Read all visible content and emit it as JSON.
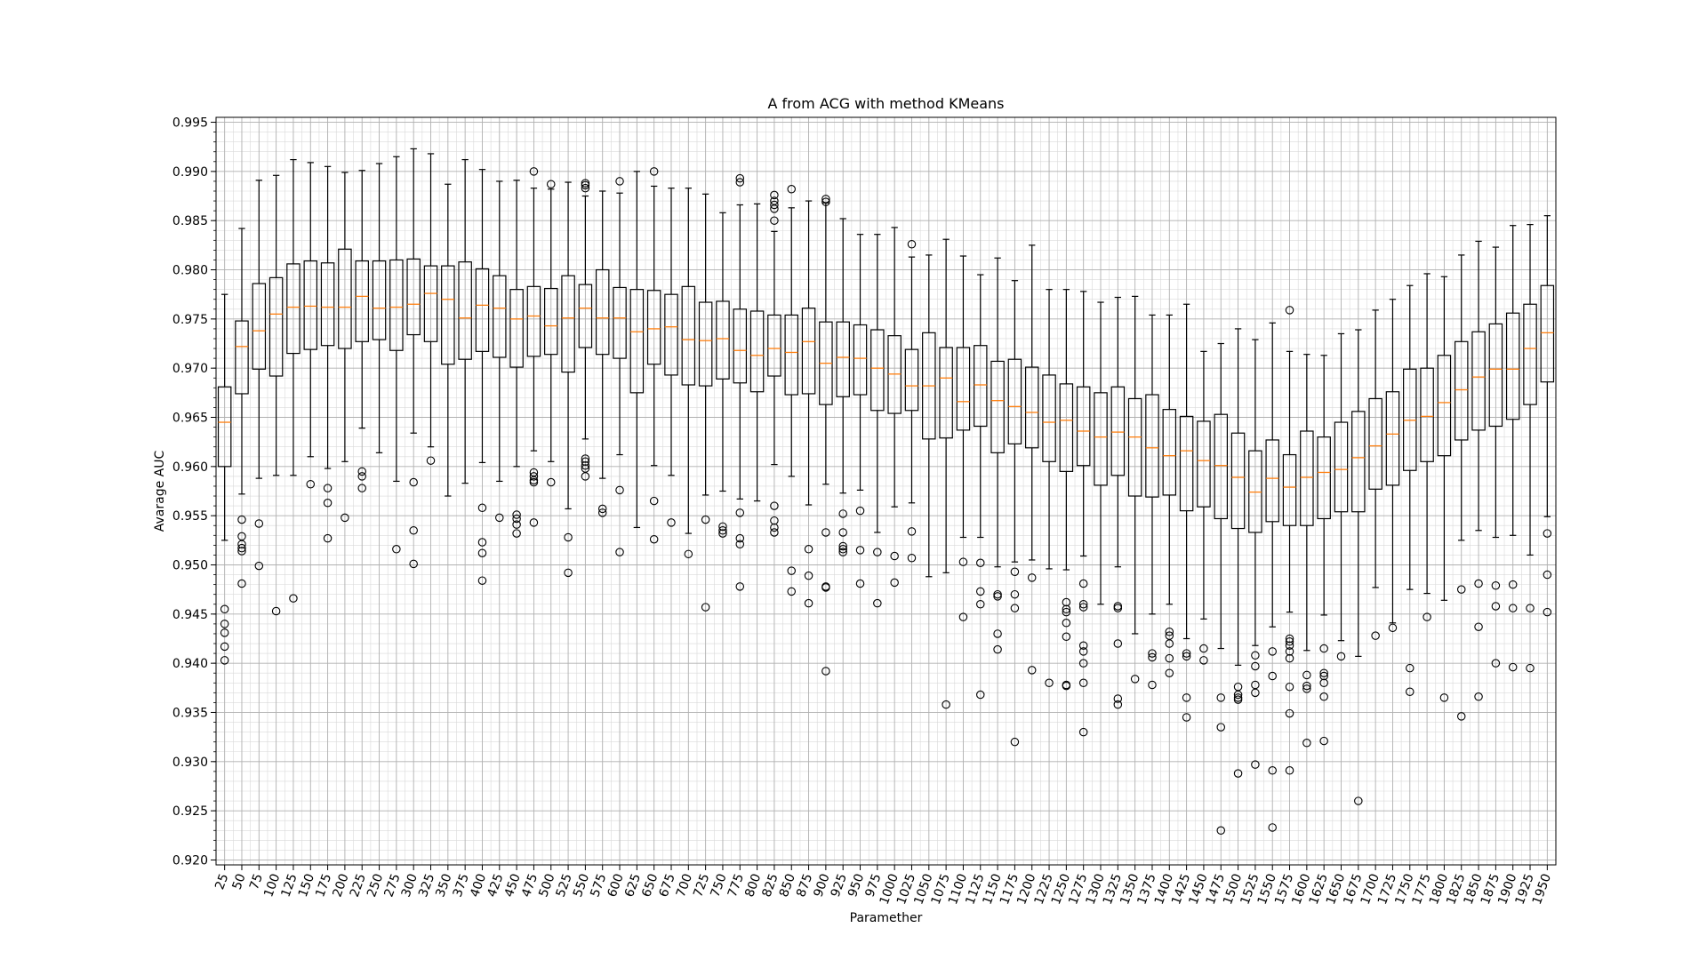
{
  "chart_data": {
    "type": "box",
    "title": "A from ACG with method KMeans",
    "xlabel": "Paramether",
    "ylabel": "Avarage AUC",
    "ylim": [
      0.9195,
      0.9955
    ],
    "yticks": [
      0.92,
      0.925,
      0.93,
      0.935,
      0.94,
      0.945,
      0.95,
      0.955,
      0.96,
      0.965,
      0.97,
      0.975,
      0.98,
      0.985,
      0.99,
      0.995
    ],
    "ytick_labels": [
      "0.920",
      "0.925",
      "0.930",
      "0.935",
      "0.940",
      "0.945",
      "0.950",
      "0.955",
      "0.960",
      "0.965",
      "0.970",
      "0.975",
      "0.980",
      "0.985",
      "0.990",
      "0.995"
    ],
    "grid": true,
    "minor_grid": true,
    "colors": {
      "box": "#000000",
      "median": "#ff7f0e",
      "grid": "#b0b0b0",
      "minor_grid": "#d9d9d9"
    },
    "categories": [
      "25",
      "50",
      "75",
      "100",
      "125",
      "150",
      "175",
      "200",
      "225",
      "250",
      "275",
      "300",
      "325",
      "350",
      "375",
      "400",
      "425",
      "450",
      "475",
      "500",
      "525",
      "550",
      "575",
      "600",
      "625",
      "650",
      "675",
      "700",
      "725",
      "750",
      "775",
      "800",
      "825",
      "850",
      "875",
      "900",
      "925",
      "950",
      "975",
      "1000",
      "1025",
      "1050",
      "1075",
      "1100",
      "1125",
      "1150",
      "1175",
      "1200",
      "1225",
      "1250",
      "1275",
      "1300",
      "1325",
      "1350",
      "1375",
      "1400",
      "1425",
      "1450",
      "1475",
      "1500",
      "1525",
      "1550",
      "1575",
      "1600",
      "1625",
      "1650",
      "1675",
      "1700",
      "1725",
      "1750",
      "1775",
      "1800",
      "1825",
      "1850",
      "1875",
      "1900",
      "1925",
      "1950"
    ],
    "boxes": [
      {
        "whislo": 0.9525,
        "q1": 0.96,
        "med": 0.9645,
        "q3": 0.9681,
        "whishi": 0.9775,
        "fliers": [
          0.9455,
          0.944,
          0.9431,
          0.9417,
          0.9403
        ]
      },
      {
        "whislo": 0.9572,
        "q1": 0.9674,
        "med": 0.9722,
        "q3": 0.9748,
        "whishi": 0.9842,
        "fliers": [
          0.9546,
          0.9529,
          0.9521,
          0.9517,
          0.9514,
          0.9481
        ]
      },
      {
        "whislo": 0.9588,
        "q1": 0.9699,
        "med": 0.9738,
        "q3": 0.9786,
        "whishi": 0.9891,
        "fliers": [
          0.9542,
          0.9499
        ]
      },
      {
        "whislo": 0.9591,
        "q1": 0.9692,
        "med": 0.9755,
        "q3": 0.9792,
        "whishi": 0.9896,
        "fliers": [
          0.9453
        ]
      },
      {
        "whislo": 0.9591,
        "q1": 0.9715,
        "med": 0.9762,
        "q3": 0.9806,
        "whishi": 0.9912,
        "fliers": [
          0.9466
        ]
      },
      {
        "whislo": 0.961,
        "q1": 0.9719,
        "med": 0.9763,
        "q3": 0.9809,
        "whishi": 0.9909,
        "fliers": [
          0.9582
        ]
      },
      {
        "whislo": 0.9598,
        "q1": 0.9723,
        "med": 0.9762,
        "q3": 0.9807,
        "whishi": 0.9905,
        "fliers": [
          0.9578,
          0.9563,
          0.9527
        ]
      },
      {
        "whislo": 0.9605,
        "q1": 0.972,
        "med": 0.9762,
        "q3": 0.9821,
        "whishi": 0.9899,
        "fliers": [
          0.9548
        ]
      },
      {
        "whislo": 0.9639,
        "q1": 0.9727,
        "med": 0.9773,
        "q3": 0.9809,
        "whishi": 0.9901,
        "fliers": [
          0.9595,
          0.959,
          0.9578
        ]
      },
      {
        "whislo": 0.9614,
        "q1": 0.9729,
        "med": 0.9761,
        "q3": 0.9809,
        "whishi": 0.9908,
        "fliers": []
      },
      {
        "whislo": 0.9585,
        "q1": 0.9718,
        "med": 0.9762,
        "q3": 0.981,
        "whishi": 0.9915,
        "fliers": [
          0.9516
        ]
      },
      {
        "whislo": 0.9634,
        "q1": 0.9734,
        "med": 0.9765,
        "q3": 0.9811,
        "whishi": 0.9923,
        "fliers": [
          0.9584,
          0.9535,
          0.9501
        ]
      },
      {
        "whislo": 0.962,
        "q1": 0.9727,
        "med": 0.9776,
        "q3": 0.9804,
        "whishi": 0.9918,
        "fliers": [
          0.9606
        ]
      },
      {
        "whislo": 0.957,
        "q1": 0.9704,
        "med": 0.977,
        "q3": 0.9804,
        "whishi": 0.9887,
        "fliers": []
      },
      {
        "whislo": 0.9583,
        "q1": 0.9709,
        "med": 0.9751,
        "q3": 0.9808,
        "whishi": 0.9912,
        "fliers": []
      },
      {
        "whislo": 0.9604,
        "q1": 0.9717,
        "med": 0.9764,
        "q3": 0.9801,
        "whishi": 0.9902,
        "fliers": [
          0.9558,
          0.9523,
          0.9512,
          0.9484
        ]
      },
      {
        "whislo": 0.9585,
        "q1": 0.9711,
        "med": 0.9761,
        "q3": 0.9794,
        "whishi": 0.989,
        "fliers": [
          0.9548
        ]
      },
      {
        "whislo": 0.96,
        "q1": 0.9701,
        "med": 0.975,
        "q3": 0.978,
        "whishi": 0.9891,
        "fliers": [
          0.9551,
          0.9547,
          0.9541,
          0.9532
        ]
      },
      {
        "whislo": 0.9616,
        "q1": 0.9712,
        "med": 0.9753,
        "q3": 0.9783,
        "whishi": 0.9883,
        "fliers": [
          0.99,
          0.9594,
          0.959,
          0.9586,
          0.9584,
          0.9543
        ]
      },
      {
        "whislo": 0.9605,
        "q1": 0.9714,
        "med": 0.9743,
        "q3": 0.9781,
        "whishi": 0.9882,
        "fliers": [
          0.9887,
          0.9584
        ]
      },
      {
        "whislo": 0.9557,
        "q1": 0.9696,
        "med": 0.9751,
        "q3": 0.9794,
        "whishi": 0.9889,
        "fliers": [
          0.9528,
          0.9492
        ]
      },
      {
        "whislo": 0.9628,
        "q1": 0.9721,
        "med": 0.9761,
        "q3": 0.9785,
        "whishi": 0.9875,
        "fliers": [
          0.9888,
          0.9886,
          0.9883,
          0.9608,
          0.9605,
          0.9601,
          0.9598,
          0.959
        ]
      },
      {
        "whislo": 0.9588,
        "q1": 0.9714,
        "med": 0.9751,
        "q3": 0.98,
        "whishi": 0.988,
        "fliers": [
          0.9557,
          0.9553
        ]
      },
      {
        "whislo": 0.9612,
        "q1": 0.971,
        "med": 0.9751,
        "q3": 0.9782,
        "whishi": 0.9878,
        "fliers": [
          0.989,
          0.9576,
          0.9513
        ]
      },
      {
        "whislo": 0.9538,
        "q1": 0.9675,
        "med": 0.9737,
        "q3": 0.978,
        "whishi": 0.99,
        "fliers": []
      },
      {
        "whislo": 0.9601,
        "q1": 0.9704,
        "med": 0.974,
        "q3": 0.9779,
        "whishi": 0.9885,
        "fliers": [
          0.99,
          0.9565,
          0.9526
        ]
      },
      {
        "whislo": 0.9591,
        "q1": 0.9693,
        "med": 0.9742,
        "q3": 0.9775,
        "whishi": 0.9883,
        "fliers": [
          0.9543
        ]
      },
      {
        "whislo": 0.9532,
        "q1": 0.9683,
        "med": 0.9729,
        "q3": 0.9783,
        "whishi": 0.9883,
        "fliers": [
          0.9511
        ]
      },
      {
        "whislo": 0.9571,
        "q1": 0.9682,
        "med": 0.9728,
        "q3": 0.9767,
        "whishi": 0.9877,
        "fliers": [
          0.9546,
          0.9457
        ]
      },
      {
        "whislo": 0.9575,
        "q1": 0.9689,
        "med": 0.973,
        "q3": 0.9768,
        "whishi": 0.9858,
        "fliers": [
          0.9539,
          0.9535,
          0.9532
        ]
      },
      {
        "whislo": 0.9567,
        "q1": 0.9685,
        "med": 0.9718,
        "q3": 0.976,
        "whishi": 0.9866,
        "fliers": [
          0.9893,
          0.9889,
          0.9553,
          0.9527,
          0.9521,
          0.9478
        ]
      },
      {
        "whislo": 0.9565,
        "q1": 0.9676,
        "med": 0.9713,
        "q3": 0.9758,
        "whishi": 0.9867,
        "fliers": []
      },
      {
        "whislo": 0.9602,
        "q1": 0.9692,
        "med": 0.972,
        "q3": 0.9754,
        "whishi": 0.9839,
        "fliers": [
          0.9876,
          0.987,
          0.9866,
          0.9862,
          0.985,
          0.956,
          0.9545,
          0.9538,
          0.9533
        ]
      },
      {
        "whislo": 0.959,
        "q1": 0.9673,
        "med": 0.9716,
        "q3": 0.9754,
        "whishi": 0.9863,
        "fliers": [
          0.9882,
          0.9494,
          0.9473
        ]
      },
      {
        "whislo": 0.9561,
        "q1": 0.9674,
        "med": 0.9727,
        "q3": 0.9761,
        "whishi": 0.987,
        "fliers": [
          0.9516,
          0.9489,
          0.9461
        ]
      },
      {
        "whislo": 0.9582,
        "q1": 0.9663,
        "med": 0.9705,
        "q3": 0.9747,
        "whishi": 0.9868,
        "fliers": [
          0.9872,
          0.9869,
          0.9533,
          0.9478,
          0.9477,
          0.9392
        ]
      },
      {
        "whislo": 0.9573,
        "q1": 0.9671,
        "med": 0.9711,
        "q3": 0.9747,
        "whishi": 0.9852,
        "fliers": [
          0.9552,
          0.9533,
          0.9519,
          0.9516,
          0.9513
        ]
      },
      {
        "whislo": 0.9576,
        "q1": 0.9673,
        "med": 0.971,
        "q3": 0.9744,
        "whishi": 0.9836,
        "fliers": [
          0.9555,
          0.9515,
          0.9481
        ]
      },
      {
        "whislo": 0.9533,
        "q1": 0.9657,
        "med": 0.97,
        "q3": 0.9739,
        "whishi": 0.9836,
        "fliers": [
          0.9513,
          0.9461
        ]
      },
      {
        "whislo": 0.9559,
        "q1": 0.9654,
        "med": 0.9694,
        "q3": 0.9733,
        "whishi": 0.9843,
        "fliers": [
          0.9509,
          0.9482
        ]
      },
      {
        "whislo": 0.9563,
        "q1": 0.9657,
        "med": 0.9682,
        "q3": 0.9719,
        "whishi": 0.9813,
        "fliers": [
          0.9826,
          0.9534,
          0.9507
        ]
      },
      {
        "whislo": 0.9488,
        "q1": 0.9628,
        "med": 0.9682,
        "q3": 0.9736,
        "whishi": 0.9815,
        "fliers": []
      },
      {
        "whislo": 0.9492,
        "q1": 0.9629,
        "med": 0.969,
        "q3": 0.9721,
        "whishi": 0.9831,
        "fliers": [
          0.9358
        ]
      },
      {
        "whislo": 0.9528,
        "q1": 0.9637,
        "med": 0.9666,
        "q3": 0.9721,
        "whishi": 0.9814,
        "fliers": [
          0.9503,
          0.9447
        ]
      },
      {
        "whislo": 0.9528,
        "q1": 0.9641,
        "med": 0.9683,
        "q3": 0.9723,
        "whishi": 0.9795,
        "fliers": [
          0.9502,
          0.9473,
          0.946,
          0.9368
        ]
      },
      {
        "whislo": 0.9498,
        "q1": 0.9614,
        "med": 0.9667,
        "q3": 0.9707,
        "whishi": 0.9812,
        "fliers": [
          0.947,
          0.9468,
          0.943,
          0.9414
        ]
      },
      {
        "whislo": 0.9503,
        "q1": 0.9623,
        "med": 0.9661,
        "q3": 0.9709,
        "whishi": 0.9789,
        "fliers": [
          0.9493,
          0.947,
          0.9456,
          0.932
        ]
      },
      {
        "whislo": 0.9505,
        "q1": 0.9619,
        "med": 0.9655,
        "q3": 0.9701,
        "whishi": 0.9825,
        "fliers": [
          0.9487,
          0.9393
        ]
      },
      {
        "whislo": 0.9496,
        "q1": 0.9605,
        "med": 0.9645,
        "q3": 0.9693,
        "whishi": 0.978,
        "fliers": [
          0.938
        ]
      },
      {
        "whislo": 0.9495,
        "q1": 0.9595,
        "med": 0.9647,
        "q3": 0.9684,
        "whishi": 0.978,
        "fliers": [
          0.9462,
          0.9455,
          0.9452,
          0.9441,
          0.9427,
          0.9378,
          0.9377
        ]
      },
      {
        "whislo": 0.9509,
        "q1": 0.9601,
        "med": 0.9636,
        "q3": 0.9681,
        "whishi": 0.9778,
        "fliers": [
          0.9481,
          0.946,
          0.9457,
          0.9418,
          0.9412,
          0.94,
          0.938,
          0.933
        ]
      },
      {
        "whislo": 0.946,
        "q1": 0.9581,
        "med": 0.963,
        "q3": 0.9675,
        "whishi": 0.9767,
        "fliers": []
      },
      {
        "whislo": 0.9498,
        "q1": 0.9591,
        "med": 0.9635,
        "q3": 0.9681,
        "whishi": 0.9772,
        "fliers": [
          0.9458,
          0.9456,
          0.942,
          0.9364,
          0.9358
        ]
      },
      {
        "whislo": 0.943,
        "q1": 0.957,
        "med": 0.963,
        "q3": 0.9669,
        "whishi": 0.9773,
        "fliers": [
          0.9384
        ]
      },
      {
        "whislo": 0.945,
        "q1": 0.9569,
        "med": 0.9619,
        "q3": 0.9673,
        "whishi": 0.9754,
        "fliers": [
          0.941,
          0.9406,
          0.9378
        ]
      },
      {
        "whislo": 0.946,
        "q1": 0.9571,
        "med": 0.9611,
        "q3": 0.9658,
        "whishi": 0.9754,
        "fliers": [
          0.9432,
          0.9428,
          0.942,
          0.9405,
          0.939
        ]
      },
      {
        "whislo": 0.9425,
        "q1": 0.9555,
        "med": 0.9616,
        "q3": 0.9651,
        "whishi": 0.9765,
        "fliers": [
          0.941,
          0.9407,
          0.9365,
          0.9345
        ]
      },
      {
        "whislo": 0.9445,
        "q1": 0.9559,
        "med": 0.9606,
        "q3": 0.9646,
        "whishi": 0.9717,
        "fliers": [
          0.9415,
          0.9403
        ]
      },
      {
        "whislo": 0.9415,
        "q1": 0.9547,
        "med": 0.9601,
        "q3": 0.9653,
        "whishi": 0.9725,
        "fliers": [
          0.9365,
          0.9335,
          0.923
        ]
      },
      {
        "whislo": 0.9398,
        "q1": 0.9537,
        "med": 0.9589,
        "q3": 0.9634,
        "whishi": 0.974,
        "fliers": [
          0.9376,
          0.9368,
          0.9365,
          0.9363,
          0.9288
        ]
      },
      {
        "whislo": 0.9418,
        "q1": 0.9533,
        "med": 0.9574,
        "q3": 0.9616,
        "whishi": 0.9729,
        "fliers": [
          0.9408,
          0.9397,
          0.9378,
          0.937,
          0.9297
        ]
      },
      {
        "whislo": 0.9437,
        "q1": 0.9544,
        "med": 0.9588,
        "q3": 0.9627,
        "whishi": 0.9746,
        "fliers": [
          0.9412,
          0.9387,
          0.9291,
          0.9233
        ]
      },
      {
        "whislo": 0.9452,
        "q1": 0.954,
        "med": 0.9579,
        "q3": 0.9612,
        "whishi": 0.9717,
        "fliers": [
          0.9759,
          0.9425,
          0.9422,
          0.9418,
          0.9412,
          0.9405,
          0.9376,
          0.9349,
          0.9291
        ]
      },
      {
        "whislo": 0.9413,
        "q1": 0.954,
        "med": 0.9589,
        "q3": 0.9636,
        "whishi": 0.9714,
        "fliers": [
          0.9388,
          0.9377,
          0.9374,
          0.9319
        ]
      },
      {
        "whislo": 0.9449,
        "q1": 0.9547,
        "med": 0.9594,
        "q3": 0.963,
        "whishi": 0.9713,
        "fliers": [
          0.9415,
          0.939,
          0.9387,
          0.938,
          0.9366,
          0.9321
        ]
      },
      {
        "whislo": 0.9423,
        "q1": 0.9554,
        "med": 0.9597,
        "q3": 0.9645,
        "whishi": 0.9735,
        "fliers": [
          0.9407
        ]
      },
      {
        "whislo": 0.9407,
        "q1": 0.9554,
        "med": 0.9609,
        "q3": 0.9656,
        "whishi": 0.9739,
        "fliers": [
          0.926
        ]
      },
      {
        "whislo": 0.9477,
        "q1": 0.9577,
        "med": 0.9621,
        "q3": 0.9669,
        "whishi": 0.9759,
        "fliers": [
          0.9428
        ]
      },
      {
        "whislo": 0.9441,
        "q1": 0.9581,
        "med": 0.9633,
        "q3": 0.9676,
        "whishi": 0.977,
        "fliers": [
          0.9436
        ]
      },
      {
        "whislo": 0.9475,
        "q1": 0.9596,
        "med": 0.9647,
        "q3": 0.9699,
        "whishi": 0.9784,
        "fliers": [
          0.9395,
          0.9371
        ]
      },
      {
        "whislo": 0.9471,
        "q1": 0.9605,
        "med": 0.9651,
        "q3": 0.97,
        "whishi": 0.9796,
        "fliers": [
          0.9447
        ]
      },
      {
        "whislo": 0.9464,
        "q1": 0.9611,
        "med": 0.9665,
        "q3": 0.9713,
        "whishi": 0.9793,
        "fliers": [
          0.9365
        ]
      },
      {
        "whislo": 0.9525,
        "q1": 0.9627,
        "med": 0.9678,
        "q3": 0.9727,
        "whishi": 0.9815,
        "fliers": [
          0.9475,
          0.9346
        ]
      },
      {
        "whislo": 0.9535,
        "q1": 0.9637,
        "med": 0.9691,
        "q3": 0.9737,
        "whishi": 0.9829,
        "fliers": [
          0.9481,
          0.9437,
          0.9366
        ]
      },
      {
        "whislo": 0.9528,
        "q1": 0.9641,
        "med": 0.9699,
        "q3": 0.9745,
        "whishi": 0.9823,
        "fliers": [
          0.9479,
          0.9458,
          0.94
        ]
      },
      {
        "whislo": 0.953,
        "q1": 0.9648,
        "med": 0.9699,
        "q3": 0.9756,
        "whishi": 0.9845,
        "fliers": [
          0.948,
          0.9456,
          0.9396
        ]
      },
      {
        "whislo": 0.951,
        "q1": 0.9663,
        "med": 0.972,
        "q3": 0.9765,
        "whishi": 0.9846,
        "fliers": [
          0.9456,
          0.9395
        ]
      },
      {
        "whislo": 0.9549,
        "q1": 0.9686,
        "med": 0.9736,
        "q3": 0.9784,
        "whishi": 0.9855,
        "fliers": [
          0.9532,
          0.949,
          0.9452
        ]
      }
    ]
  }
}
